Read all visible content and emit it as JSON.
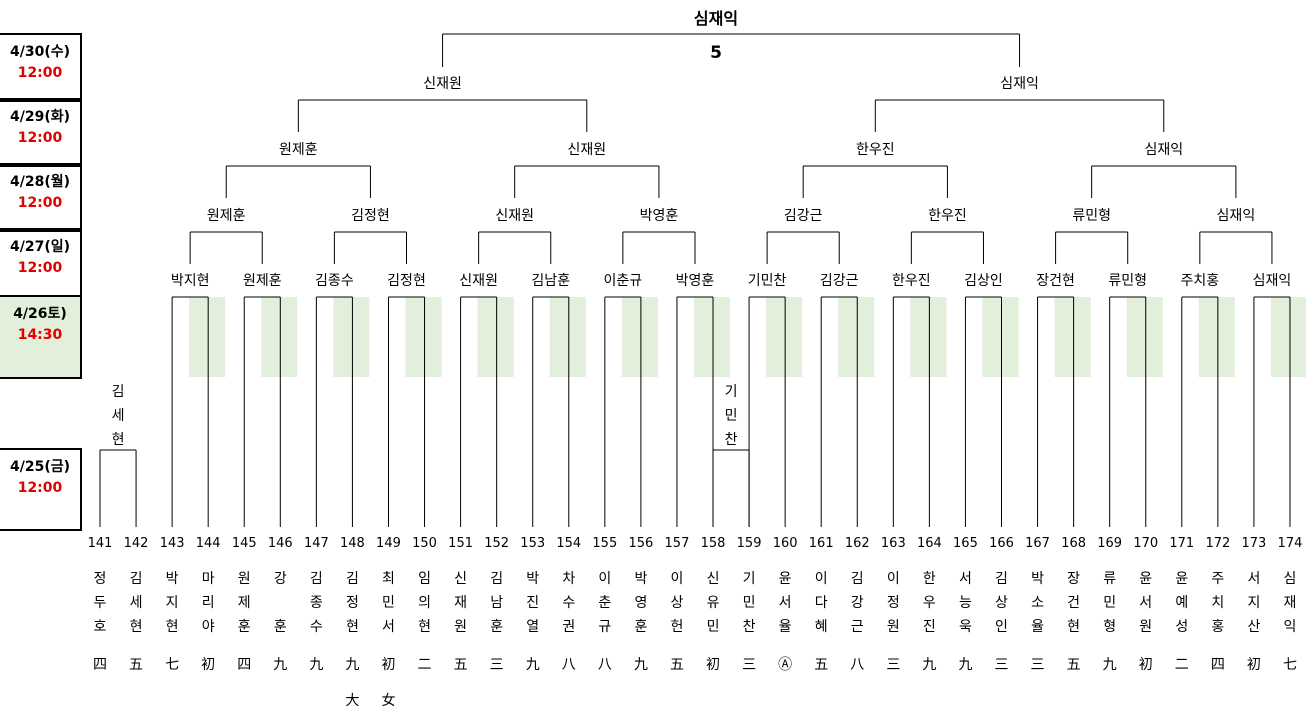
{
  "champion": "심재익",
  "final_score": "5",
  "days": [
    {
      "label": "4/30(수)",
      "time": "12:00"
    },
    {
      "label": "4/29(화)",
      "time": "12:00"
    },
    {
      "label": "4/28(월)",
      "time": "12:00"
    },
    {
      "label": "4/27(일)",
      "time": "12:00"
    },
    {
      "label": "4/26토)",
      "time": "14:30"
    },
    {
      "label": "4/25(금)",
      "time": "12:00"
    }
  ],
  "players": [
    {
      "num": "141",
      "name": "정두호",
      "rank": "四"
    },
    {
      "num": "142",
      "name": "김세현",
      "rank": "五"
    },
    {
      "num": "143",
      "name": "박지현",
      "rank": "七"
    },
    {
      "num": "144",
      "name": "마리야",
      "rank": "初"
    },
    {
      "num": "145",
      "name": "원제훈",
      "rank": "四"
    },
    {
      "num": "146",
      "name": "강 훈",
      "rank": "九"
    },
    {
      "num": "147",
      "name": "김종수",
      "rank": "九"
    },
    {
      "num": "148",
      "name": "김정현",
      "rank": "九"
    },
    {
      "num": "149",
      "name": "최민서",
      "rank": "初"
    },
    {
      "num": "150",
      "name": "임의현",
      "rank": "二"
    },
    {
      "num": "151",
      "name": "신재원",
      "rank": "五"
    },
    {
      "num": "152",
      "name": "김남훈",
      "rank": "三"
    },
    {
      "num": "153",
      "name": "박진열",
      "rank": "九"
    },
    {
      "num": "154",
      "name": "차수권",
      "rank": "八"
    },
    {
      "num": "155",
      "name": "이춘규",
      "rank": "八"
    },
    {
      "num": "156",
      "name": "박영훈",
      "rank": "九"
    },
    {
      "num": "157",
      "name": "이상헌",
      "rank": "五"
    },
    {
      "num": "158",
      "name": "신유민",
      "rank": "初"
    },
    {
      "num": "159",
      "name": "기민찬",
      "rank": "三"
    },
    {
      "num": "160",
      "name": "윤서율",
      "rank": "Ⓐ"
    },
    {
      "num": "161",
      "name": "이다혜",
      "rank": "五"
    },
    {
      "num": "162",
      "name": "김강근",
      "rank": "八"
    },
    {
      "num": "163",
      "name": "이정원",
      "rank": "三"
    },
    {
      "num": "164",
      "name": "한우진",
      "rank": "九"
    },
    {
      "num": "165",
      "name": "서능욱",
      "rank": "九"
    },
    {
      "num": "166",
      "name": "김상인",
      "rank": "三"
    },
    {
      "num": "167",
      "name": "박소율",
      "rank": "三"
    },
    {
      "num": "168",
      "name": "장건현",
      "rank": "五"
    },
    {
      "num": "169",
      "name": "류민형",
      "rank": "九"
    },
    {
      "num": "170",
      "name": "윤서원",
      "rank": "初"
    },
    {
      "num": "171",
      "name": "윤예성",
      "rank": "二"
    },
    {
      "num": "172",
      "name": "주치홍",
      "rank": "四"
    },
    {
      "num": "173",
      "name": "서지산",
      "rank": "初"
    },
    {
      "num": "174",
      "name": "심재익",
      "rank": "七"
    }
  ],
  "notes": [
    "大",
    "女"
  ],
  "prelim_winners": [
    "김세현",
    "기민찬"
  ],
  "round_of_16": [
    "박지현",
    "원제훈",
    "김종수",
    "김정현",
    "신재원",
    "김남훈",
    "이춘규",
    "박영훈",
    "기민찬",
    "김강근",
    "한우진",
    "김상인",
    "장건현",
    "류민형",
    "주치홍",
    "심재익"
  ],
  "round_of_8": [
    "원제훈",
    "김정현",
    "신재원",
    "박영훈",
    "김강근",
    "한우진",
    "류민형",
    "심재익"
  ],
  "round_of_4": [
    "원제훈",
    "신재원",
    "한우진",
    "심재익"
  ],
  "round_of_2": [
    "신재원",
    "심재익"
  ],
  "colors": {
    "highlight": "#e2efda",
    "time": "#e00000"
  }
}
